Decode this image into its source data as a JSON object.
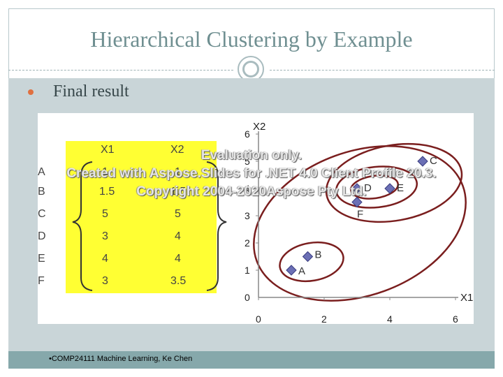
{
  "slide": {
    "title": "Hierarchical Clustering by Example",
    "bullet": "Final result",
    "footer": "•COMP24111  Machine Learning, Ke Chen"
  },
  "table": {
    "headers": [
      "X1",
      "X2"
    ],
    "rows": [
      {
        "label": "A",
        "x1": "1",
        "x2": "1"
      },
      {
        "label": "B",
        "x1": "1.5",
        "x2": "1.5"
      },
      {
        "label": "C",
        "x1": "5",
        "x2": "5"
      },
      {
        "label": "D",
        "x1": "3",
        "x2": "4"
      },
      {
        "label": "E",
        "x1": "4",
        "x2": "4"
      },
      {
        "label": "F",
        "x1": "3",
        "x2": "3.5"
      }
    ]
  },
  "chart_data": {
    "type": "scatter",
    "xlabel": "X1",
    "ylabel": "X2",
    "xlim": [
      0,
      6
    ],
    "ylim": [
      0,
      6
    ],
    "xticks": [
      "0",
      "2",
      "4",
      "6"
    ],
    "yticks": [
      "0",
      "1",
      "2",
      "3",
      "4",
      "5",
      "6"
    ],
    "points": [
      {
        "label": "A",
        "x": 1,
        "y": 1
      },
      {
        "label": "B",
        "x": 1.5,
        "y": 1.5
      },
      {
        "label": "C",
        "x": 5,
        "y": 5
      },
      {
        "label": "D",
        "x": 3,
        "y": 4
      },
      {
        "label": "E",
        "x": 4,
        "y": 4
      },
      {
        "label": "F",
        "x": 3,
        "y": 3.5
      }
    ],
    "marker_color": "#6b6fb5",
    "cluster_color": "#7a1e1e"
  },
  "watermark": {
    "line1": "Evaluation only.",
    "line2": "Created with Aspose.Slides for .NET 4.0 Client Profile 20.3.",
    "line3": "Copyright 2004-2020Aspose Pty Ltd."
  }
}
